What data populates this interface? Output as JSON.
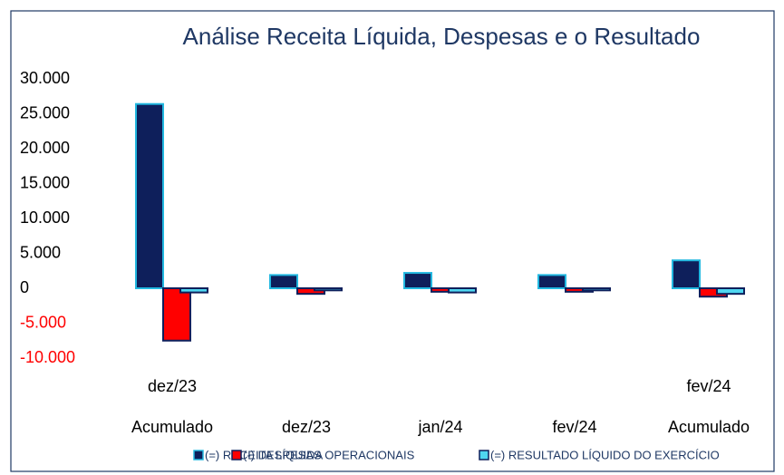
{
  "chart_data": {
    "type": "bar",
    "title": "Análise Receita Líquida, Despesas  e o  Resultado",
    "categories": [
      [
        "dez/23",
        "Acumulado"
      ],
      [
        "dez/23"
      ],
      [
        "jan/24"
      ],
      [
        "fev/24"
      ],
      [
        "fev/24",
        "Acumulado"
      ]
    ],
    "series": [
      {
        "name": "(=)  RECEITA LÍQUIDA",
        "color": "#0e1f5b",
        "edge": "#22b8e0",
        "values": [
          26400,
          1900,
          2200,
          1900,
          4000
        ]
      },
      {
        "name": "(-) DESPESAS OPERACIONAIS",
        "color": "#ff0000",
        "edge": "#0e1f5b",
        "values": [
          -7500,
          -800,
          -500,
          -500,
          -1200
        ]
      },
      {
        "name": "(=) RESULTADO LÍQUIDO DO EXERCÍCIO",
        "color": "#4fd6f0",
        "edge": "#0e1f5b",
        "values": [
          -600,
          -300,
          -600,
          -300,
          -800
        ]
      }
    ],
    "ylim": [
      -10000,
      30000
    ],
    "yticks": [
      {
        "value": 30000,
        "label": "30.000"
      },
      {
        "value": 25000,
        "label": "25.000"
      },
      {
        "value": 20000,
        "label": "20.000"
      },
      {
        "value": 15000,
        "label": "15.000"
      },
      {
        "value": 10000,
        "label": "10.000"
      },
      {
        "value": 5000,
        "label": "5.000"
      },
      0,
      {
        "value": -5000,
        "label": "-5.000"
      },
      {
        "value": -10000,
        "label": "-10.000"
      }
    ],
    "negative_tick_color": "#ff0000",
    "grid": false,
    "legend": "bottom"
  }
}
